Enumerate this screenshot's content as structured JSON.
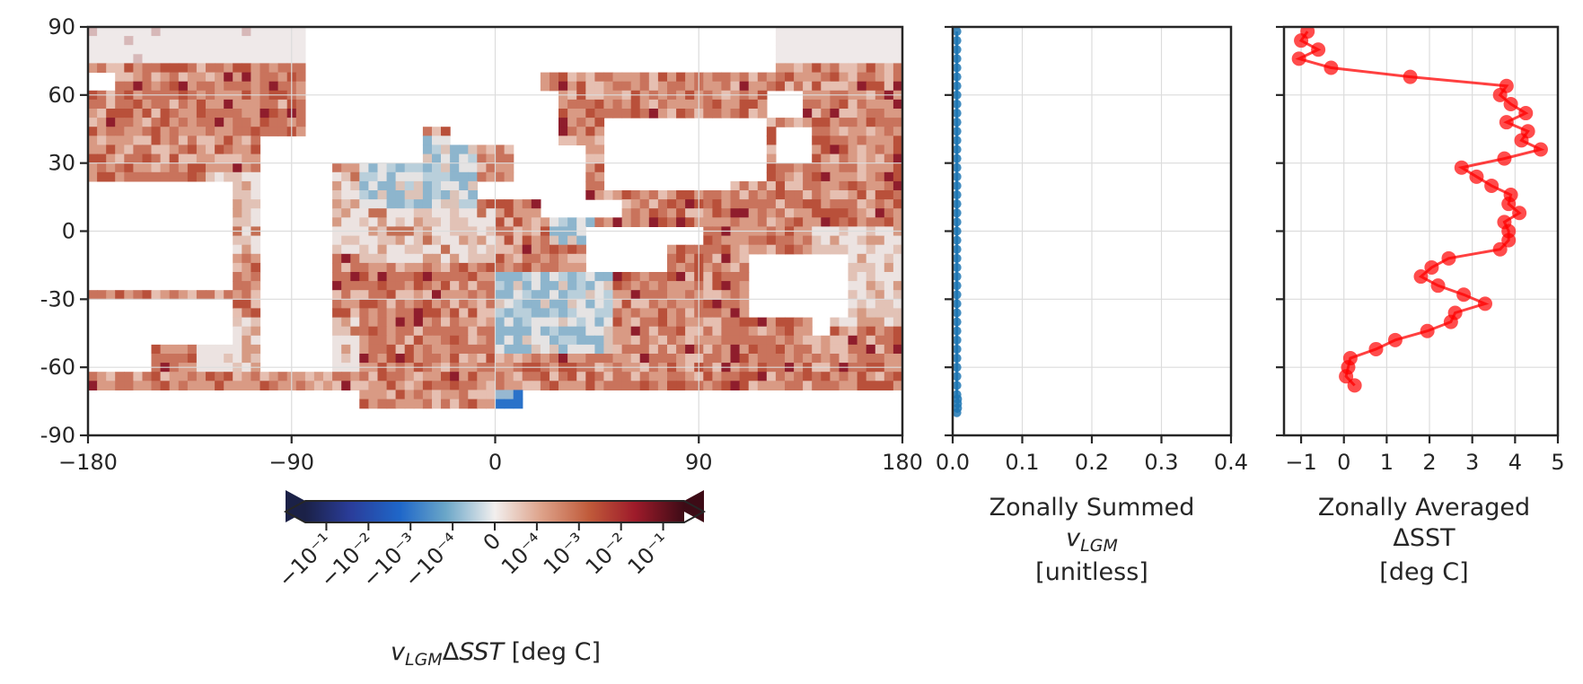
{
  "chart_data": [
    {
      "type": "heatmap",
      "panel": "map",
      "xlim": [
        -180,
        180
      ],
      "ylim": [
        -90,
        90
      ],
      "x_ticks": [
        "−180",
        "−90",
        "0",
        "90",
        "180"
      ],
      "y_ticks": [
        "90",
        "60",
        "30",
        "0",
        "-30",
        "-60",
        "-90"
      ],
      "x_tick_values": [
        -180,
        -90,
        0,
        90,
        180
      ],
      "y_tick_values": [
        90,
        60,
        30,
        0,
        -30,
        -60,
        -90
      ],
      "grid": true,
      "colormap": "balance (diverging blue-white-red)",
      "colorbar": {
        "orientation": "horizontal",
        "placement": "bottom",
        "scale": "symlog",
        "extend": "both",
        "ticks": [
          "−10⁻¹",
          "−10⁻²",
          "−10⁻³",
          "−10⁻⁴",
          "0",
          "10⁻⁴",
          "10⁻³",
          "10⁻²",
          "10⁻¹"
        ],
        "tick_values": [
          -0.1,
          -0.01,
          -0.001,
          -0.0001,
          0,
          0.0001,
          0.001,
          0.01,
          0.1
        ],
        "label": "v_LGM ΔSST [deg C]"
      }
    },
    {
      "type": "line",
      "panel": "zonal-sum",
      "xlim": [
        0,
        0.4
      ],
      "ylim": [
        -90,
        90
      ],
      "x_ticks": [
        "0.0",
        "0.1",
        "0.2",
        "0.3",
        "0.4"
      ],
      "x_tick_values": [
        0,
        0.1,
        0.2,
        0.3,
        0.4
      ],
      "grid": true,
      "xlabel": [
        "Zonally Summed",
        "v_LGM",
        "[unitless]"
      ],
      "series": [
        {
          "color": "#1f77b4",
          "x": [
            0.006,
            0.006,
            0.006,
            0.006,
            0.006,
            0.006,
            0.006,
            0.006,
            0.006,
            0.006,
            0.006,
            0.006,
            0.006,
            0.006,
            0.006,
            0.006,
            0.006,
            0.006,
            0.006,
            0.006,
            0.006,
            0.006,
            0.006,
            0.006,
            0.006,
            0.006,
            0.006,
            0.006,
            0.006,
            0.006,
            0.006,
            0.006,
            0.006,
            0.006,
            0.006,
            0.006,
            0.006,
            0.006,
            0.006,
            0.006,
            0.006,
            0.007,
            0.007,
            0.007,
            0.006
          ],
          "y": [
            88,
            84,
            80,
            76,
            72,
            68,
            64,
            60,
            56,
            52,
            48,
            44,
            40,
            36,
            32,
            28,
            24,
            20,
            16,
            12,
            8,
            4,
            0,
            -4,
            -8,
            -12,
            -16,
            -20,
            -24,
            -28,
            -32,
            -36,
            -40,
            -44,
            -48,
            -52,
            -56,
            -60,
            -64,
            -68,
            -72,
            -74,
            -76,
            -78,
            -80
          ]
        }
      ]
    },
    {
      "type": "line",
      "panel": "zonal-average",
      "xlim": [
        -1.4,
        5
      ],
      "ylim": [
        -90,
        90
      ],
      "x_ticks": [
        "−1",
        "0",
        "1",
        "2",
        "3",
        "4",
        "5"
      ],
      "x_tick_values": [
        -1,
        0,
        1,
        2,
        3,
        4,
        5
      ],
      "grid": true,
      "xlabel": [
        "Zonally Averaged",
        "ΔSST",
        "[deg C]"
      ],
      "series": [
        {
          "color": "#ff0000",
          "x": [
            -0.85,
            -1.0,
            -0.6,
            -1.05,
            -0.3,
            1.55,
            3.8,
            3.65,
            3.9,
            4.25,
            3.8,
            4.3,
            4.15,
            4.6,
            3.75,
            2.75,
            3.1,
            3.45,
            3.9,
            3.85,
            4.1,
            3.75,
            3.85,
            3.85,
            3.65,
            2.45,
            2.05,
            1.8,
            2.2,
            2.8,
            3.3,
            2.6,
            2.5,
            1.95,
            1.2,
            0.75,
            0.15,
            0.1,
            0.05,
            0.25
          ],
          "y": [
            88,
            84,
            80,
            76,
            72,
            68,
            64,
            60,
            56,
            52,
            48,
            44,
            40,
            36,
            32,
            28,
            24,
            20,
            16,
            12,
            8,
            4,
            0,
            -4,
            -8,
            -12,
            -16,
            -20,
            -24,
            -28,
            -32,
            -36,
            -40,
            -44,
            -48,
            -52,
            -56,
            -60,
            -64,
            -68
          ]
        }
      ]
    }
  ]
}
